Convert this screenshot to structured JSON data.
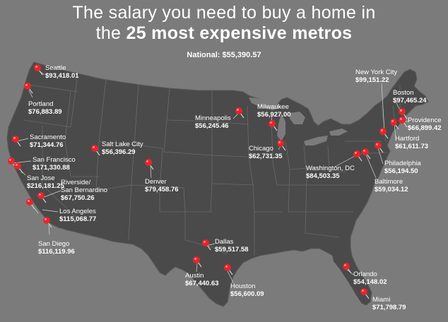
{
  "title": {
    "line1": "The salary you need to buy a home in",
    "line2_prefix": "the ",
    "line2_bold": "25 most expensive metros"
  },
  "national": "National: $55,390.57",
  "colors": {
    "background": "#7b7b7b",
    "land": "#4a4a4a",
    "state_border": "#6a6a6a",
    "pin": "#e8242b",
    "text": "#ffffff"
  },
  "pin_icon": "map-pushpin-icon",
  "cities": [
    {
      "name": "Seattle",
      "value": "$93,418.01"
    },
    {
      "name": "Portland",
      "value": "$76,883.89"
    },
    {
      "name": "Sacramento",
      "value": "$71,344.76"
    },
    {
      "name": "San Francisco",
      "value": "$171,330.88"
    },
    {
      "name": "San Jose",
      "value": "$216,181.25"
    },
    {
      "name": "Riverside/",
      "name2": "San Bernardino",
      "value": "$67,750.26"
    },
    {
      "name": "Los Angeles",
      "value": "$115,068.77"
    },
    {
      "name": "San Diego",
      "value": "$116,119.96"
    },
    {
      "name": "Salt Lake City",
      "value": "$56,396.29"
    },
    {
      "name": "Denver",
      "value": "$79,458.76"
    },
    {
      "name": "Minneapolis",
      "value": "$56,245.46"
    },
    {
      "name": "Milwaukee",
      "value": "$56,927.00"
    },
    {
      "name": "Chicago",
      "value": "$62,731.35"
    },
    {
      "name": "Dallas",
      "value": "$59,517.58"
    },
    {
      "name": "Austin",
      "value": "$67,440.63"
    },
    {
      "name": "Houston",
      "value": "$56,600.09"
    },
    {
      "name": "Orlando",
      "value": "$54,148.02"
    },
    {
      "name": "Miami",
      "value": "$71,798.79"
    },
    {
      "name": "Washington, DC",
      "value": "$84,503.35"
    },
    {
      "name": "Baltimore",
      "value": "$59,034.12"
    },
    {
      "name": "Philadelphia",
      "value": "$56,194.50"
    },
    {
      "name": "New York City",
      "value": "$99,151.22"
    },
    {
      "name": "Boston",
      "value": "$97,465.24"
    },
    {
      "name": "Providence",
      "value": "$66,899.42"
    },
    {
      "name": "Hartford",
      "value": "$61,611.73"
    }
  ]
}
